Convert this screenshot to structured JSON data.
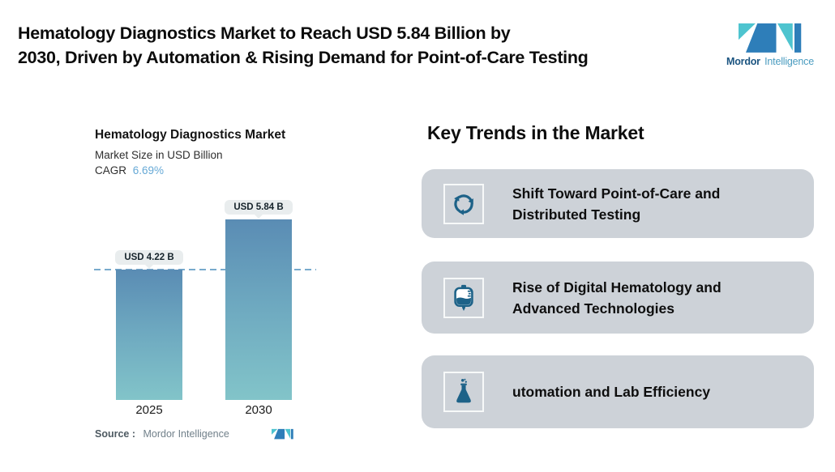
{
  "header": {
    "title_lines": [
      "Hematology Diagnostics Market to Reach USD 5.84 Billion by",
      "2030, Driven by Automation & Rising Demand for Point-of-Care Testing"
    ],
    "brand": {
      "word_bold": "Mordor",
      "word_light": "Intelligence"
    }
  },
  "chart_data": {
    "type": "bar",
    "title": "Hematology Diagnostics Market",
    "subtitle": "Market Size in USD Billion",
    "cagr_label": "CAGR",
    "cagr_value": "6.69%",
    "categories": [
      "2025",
      "2030"
    ],
    "values": [
      4.22,
      5.84
    ],
    "value_labels": [
      "USD 4.22 B",
      "USD 5.84 B"
    ],
    "xlabel": "",
    "ylabel": "",
    "ylim": [
      0,
      6.6
    ],
    "baseline_reference": 4.22,
    "grid": "single dashed horizontal line at first bar value",
    "legend": "none"
  },
  "chart_footer": {
    "source_label": "Source :",
    "source_value": "Mordor Intelligence"
  },
  "trends": {
    "heading": "Key Trends in the Market",
    "items": [
      {
        "icon": "cycle-arrows-icon",
        "line1": "Shift Toward Point-of-Care and",
        "line2": "Distributed Testing"
      },
      {
        "icon": "blood-bag-icon",
        "line1": "Rise of Digital Hematology and",
        "line2": "Advanced Technologies"
      },
      {
        "icon": "lab-flask-icon",
        "line1": "utomation and Lab Efficiency",
        "line2": ""
      }
    ]
  },
  "colors": {
    "bar_gradient_top": "#5a8cb4",
    "bar_gradient_bottom": "#82c4c9",
    "dashed_line": "#78aacd",
    "badge_bg": "#e9edee",
    "card_bg": "#cdd2d8",
    "icon_teal": "#1d6288",
    "cagr_blue": "#66a9d6",
    "logo_teal": "#4ec4cf",
    "logo_blue": "#2e7eb9",
    "brand_dark_blue": "#1b5480",
    "brand_light_blue": "#4b9cc0"
  }
}
